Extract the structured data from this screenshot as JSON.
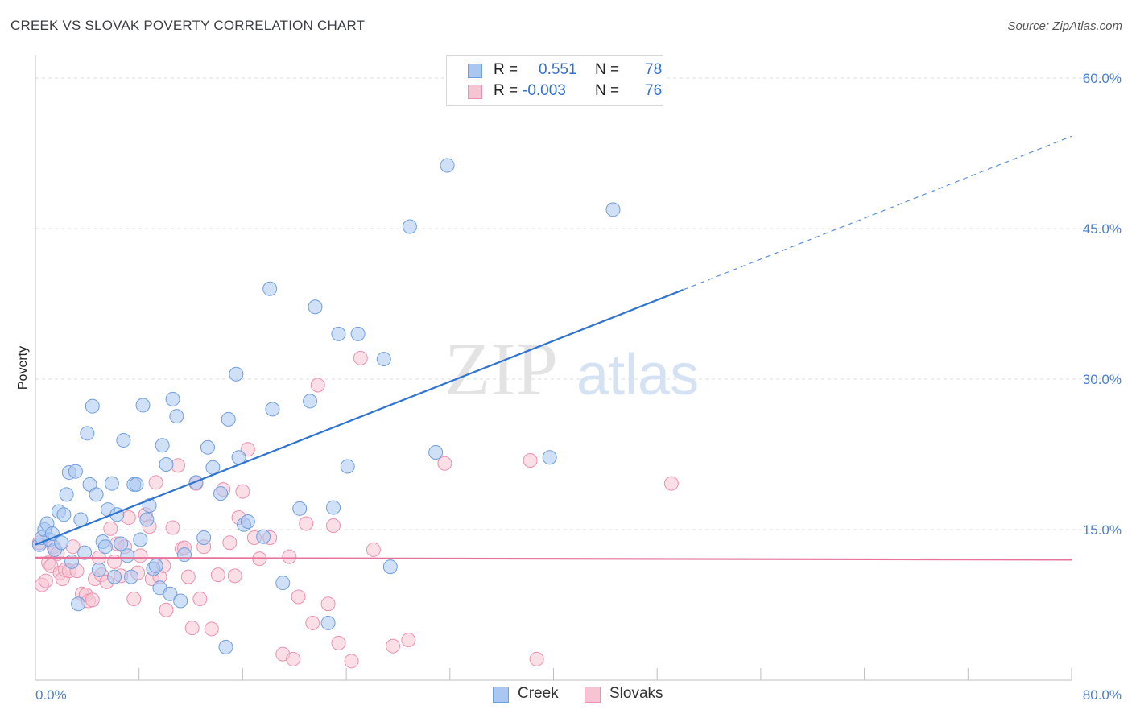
{
  "header": {
    "title": "CREEK VS SLOVAK POVERTY CORRELATION CHART",
    "source": "Source: ZipAtlas.com"
  },
  "legend": {
    "rows": [
      {
        "r_label": "R =",
        "r_value": "0.551",
        "n_label": "N =",
        "n_value": "78",
        "color": "#a9c7f0"
      },
      {
        "r_label": "R =",
        "r_value": "-0.003",
        "n_label": "N =",
        "n_value": "76",
        "color": "#f6b9cb"
      }
    ]
  },
  "bottom_legend": {
    "creek_label": "Creek",
    "slovaks_label": "Slovaks"
  },
  "watermark": {
    "zip": "ZIP",
    "atlas": "atlas"
  },
  "colors": {
    "creek_fill": "#a9c7f0",
    "creek_stroke": "#6f9fde",
    "creek_line": "#2f74d0",
    "slovaks_fill": "#f6c4d3",
    "slovaks_stroke": "#eb92ae",
    "slovaks_line": "#e8739a",
    "tick_text": "#4a7fd0",
    "grid": "#dcdcdc"
  },
  "chart_data": {
    "type": "scatter",
    "title": "CREEK VS SLOVAK POVERTY CORRELATION CHART",
    "xlabel": "",
    "ylabel": "Poverty",
    "xlim": [
      0,
      80
    ],
    "ylim": [
      0,
      60
    ],
    "x_tick_labels": [
      "0.0%",
      "80.0%"
    ],
    "y_ticks": [
      15,
      30,
      45,
      60
    ],
    "y_tick_labels": [
      "15.0%",
      "30.0%",
      "45.0%",
      "60.0%"
    ],
    "grid": true,
    "legend_position": "top-center",
    "series": [
      {
        "name": "Creek",
        "r": 0.551,
        "n": 78,
        "trend": {
          "x0": 0,
          "y0": 13.5,
          "x1": 50,
          "y1": 38.9,
          "dashed_to_x": 80,
          "dashed_to_y": 54.2
        },
        "points": [
          [
            0.3,
            13.5
          ],
          [
            0.5,
            14.2
          ],
          [
            0.7,
            15.0
          ],
          [
            0.9,
            15.6
          ],
          [
            1.1,
            14.0
          ],
          [
            1.3,
            14.6
          ],
          [
            1.5,
            13.0
          ],
          [
            1.8,
            16.8
          ],
          [
            2.0,
            13.7
          ],
          [
            2.2,
            16.5
          ],
          [
            2.4,
            18.5
          ],
          [
            2.6,
            20.7
          ],
          [
            2.8,
            11.8
          ],
          [
            3.1,
            20.8
          ],
          [
            3.3,
            7.6
          ],
          [
            3.5,
            16.0
          ],
          [
            3.8,
            12.7
          ],
          [
            4.0,
            24.6
          ],
          [
            4.2,
            19.5
          ],
          [
            4.4,
            27.3
          ],
          [
            4.7,
            18.5
          ],
          [
            4.9,
            11.0
          ],
          [
            5.2,
            13.8
          ],
          [
            5.4,
            13.3
          ],
          [
            5.6,
            17.0
          ],
          [
            5.9,
            19.6
          ],
          [
            6.1,
            10.3
          ],
          [
            6.3,
            16.5
          ],
          [
            6.6,
            13.6
          ],
          [
            6.8,
            23.9
          ],
          [
            7.1,
            12.4
          ],
          [
            7.4,
            10.3
          ],
          [
            7.6,
            19.5
          ],
          [
            7.8,
            19.5
          ],
          [
            8.1,
            14.0
          ],
          [
            8.3,
            27.4
          ],
          [
            8.6,
            16.0
          ],
          [
            8.8,
            17.4
          ],
          [
            9.1,
            11.1
          ],
          [
            9.3,
            11.4
          ],
          [
            9.6,
            9.2
          ],
          [
            9.8,
            23.4
          ],
          [
            10.1,
            21.5
          ],
          [
            10.4,
            8.6
          ],
          [
            10.6,
            28.0
          ],
          [
            10.9,
            26.3
          ],
          [
            11.2,
            7.9
          ],
          [
            11.5,
            12.5
          ],
          [
            12.4,
            19.7
          ],
          [
            13.0,
            14.2
          ],
          [
            13.3,
            23.2
          ],
          [
            13.7,
            21.2
          ],
          [
            14.3,
            18.6
          ],
          [
            14.7,
            3.3
          ],
          [
            14.9,
            26.0
          ],
          [
            15.5,
            30.5
          ],
          [
            15.7,
            22.2
          ],
          [
            16.1,
            15.5
          ],
          [
            16.4,
            15.8
          ],
          [
            17.6,
            14.3
          ],
          [
            18.1,
            39.0
          ],
          [
            18.3,
            27.0
          ],
          [
            19.1,
            9.7
          ],
          [
            20.4,
            17.1
          ],
          [
            21.2,
            27.8
          ],
          [
            21.6,
            37.2
          ],
          [
            22.6,
            5.7
          ],
          [
            23.0,
            17.2
          ],
          [
            23.4,
            34.5
          ],
          [
            24.1,
            21.3
          ],
          [
            24.9,
            34.5
          ],
          [
            26.9,
            32.0
          ],
          [
            27.4,
            11.3
          ],
          [
            28.9,
            45.2
          ],
          [
            30.9,
            22.7
          ],
          [
            31.8,
            51.3
          ],
          [
            39.7,
            22.2
          ],
          [
            44.6,
            46.9
          ]
        ]
      },
      {
        "name": "Slovaks",
        "r": -0.003,
        "n": 76,
        "trend": {
          "x0": 0,
          "y0": 12.2,
          "x1": 80,
          "y1": 12.0
        },
        "points": [
          [
            0.3,
            13.7
          ],
          [
            0.5,
            9.5
          ],
          [
            0.8,
            9.9
          ],
          [
            1.0,
            11.7
          ],
          [
            1.2,
            11.4
          ],
          [
            1.4,
            13.3
          ],
          [
            1.7,
            12.6
          ],
          [
            1.9,
            10.7
          ],
          [
            2.1,
            10.1
          ],
          [
            2.3,
            11.0
          ],
          [
            2.6,
            10.9
          ],
          [
            2.9,
            13.3
          ],
          [
            3.2,
            10.9
          ],
          [
            3.6,
            8.6
          ],
          [
            3.9,
            8.5
          ],
          [
            4.1,
            7.9
          ],
          [
            4.4,
            8.0
          ],
          [
            4.6,
            10.1
          ],
          [
            4.9,
            12.2
          ],
          [
            5.1,
            10.5
          ],
          [
            5.5,
            9.8
          ],
          [
            5.8,
            15.1
          ],
          [
            6.1,
            11.8
          ],
          [
            6.3,
            13.6
          ],
          [
            6.6,
            10.4
          ],
          [
            6.9,
            13.3
          ],
          [
            7.2,
            16.2
          ],
          [
            7.6,
            8.1
          ],
          [
            7.9,
            10.7
          ],
          [
            8.1,
            12.4
          ],
          [
            8.5,
            16.5
          ],
          [
            8.8,
            15.3
          ],
          [
            9.0,
            10.1
          ],
          [
            9.3,
            19.7
          ],
          [
            9.6,
            10.3
          ],
          [
            9.9,
            11.4
          ],
          [
            10.1,
            7.0
          ],
          [
            10.6,
            15.2
          ],
          [
            11.0,
            21.4
          ],
          [
            11.3,
            13.1
          ],
          [
            11.5,
            13.2
          ],
          [
            11.8,
            10.3
          ],
          [
            12.1,
            5.2
          ],
          [
            12.4,
            19.6
          ],
          [
            12.7,
            8.1
          ],
          [
            13.0,
            13.3
          ],
          [
            13.6,
            5.1
          ],
          [
            14.1,
            10.5
          ],
          [
            14.5,
            19.0
          ],
          [
            15.0,
            13.7
          ],
          [
            15.4,
            10.4
          ],
          [
            15.7,
            16.2
          ],
          [
            16.0,
            18.8
          ],
          [
            16.4,
            23.0
          ],
          [
            16.9,
            14.2
          ],
          [
            17.3,
            12.1
          ],
          [
            18.1,
            14.2
          ],
          [
            19.1,
            2.6
          ],
          [
            19.6,
            12.3
          ],
          [
            19.9,
            2.1
          ],
          [
            20.3,
            8.3
          ],
          [
            20.9,
            15.6
          ],
          [
            21.4,
            5.7
          ],
          [
            21.8,
            29.4
          ],
          [
            22.6,
            7.6
          ],
          [
            23.0,
            15.4
          ],
          [
            23.4,
            3.7
          ],
          [
            24.4,
            1.9
          ],
          [
            25.1,
            32.1
          ],
          [
            26.1,
            13.0
          ],
          [
            27.6,
            3.4
          ],
          [
            28.8,
            4.0
          ],
          [
            31.6,
            21.6
          ],
          [
            38.2,
            21.9
          ],
          [
            38.7,
            2.1
          ],
          [
            49.1,
            19.6
          ]
        ]
      }
    ]
  }
}
